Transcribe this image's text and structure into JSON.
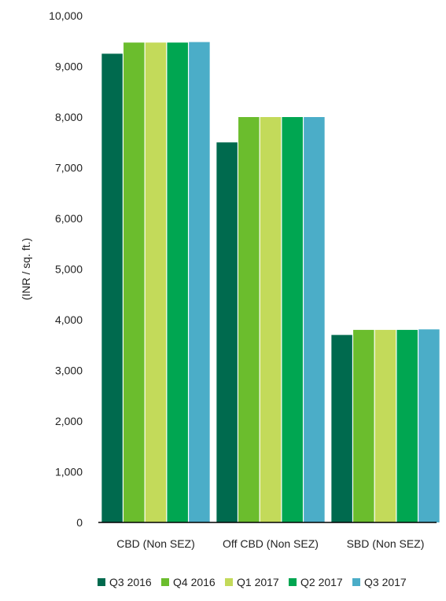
{
  "chart_data": {
    "type": "bar",
    "title": "",
    "xlabel": "",
    "ylabel": "(INR / sq. ft.)",
    "ylim": [
      0,
      10000
    ],
    "yticks": [
      0,
      1000,
      2000,
      3000,
      4000,
      5000,
      6000,
      7000,
      8000,
      9000,
      10000
    ],
    "ytick_labels": [
      "0",
      "1,000",
      "2,000",
      "3,000",
      "4,000",
      "5,000",
      "6,000",
      "7,000",
      "8,000",
      "9,000",
      "10,000"
    ],
    "grid": false,
    "legend_position": "bottom",
    "categories": [
      "CBD (Non SEZ)",
      "Off CBD (Non SEZ)",
      "SBD (Non SEZ)"
    ],
    "series": [
      {
        "name": "Q3 2016",
        "color": "#006a4e",
        "values": [
          9250,
          7500,
          3700
        ]
      },
      {
        "name": "Q4 2016",
        "color": "#6bbd2d",
        "values": [
          9470,
          8000,
          3800
        ]
      },
      {
        "name": "Q1 2017",
        "color": "#c3da5a",
        "values": [
          9470,
          8000,
          3800
        ]
      },
      {
        "name": "Q2 2017",
        "color": "#00a651",
        "values": [
          9470,
          8000,
          3800
        ]
      },
      {
        "name": "Q3 2017",
        "color": "#4badc8",
        "values": [
          9480,
          8000,
          3810
        ]
      }
    ]
  }
}
